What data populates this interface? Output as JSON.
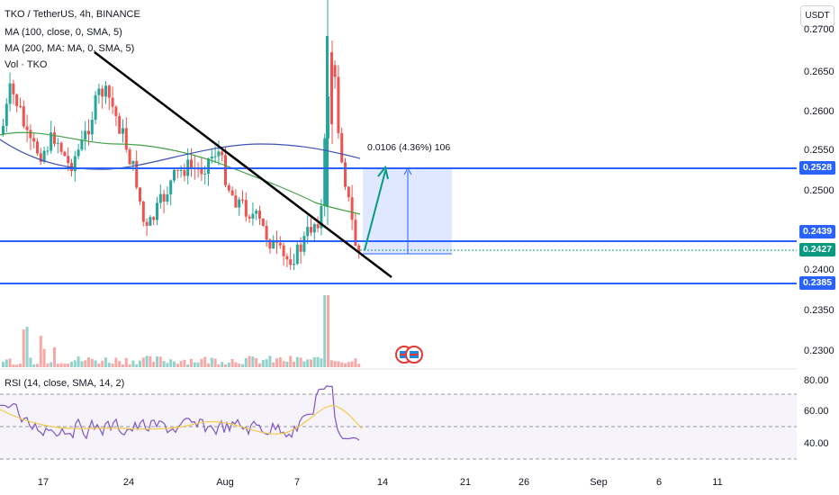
{
  "legend": {
    "symbol": "TKO / TetherUS, 4h, BINANCE",
    "ma100": "MA (100, close, 0, SMA, 5)",
    "ma200": "MA (200, MA: MA, 0, SMA, 5)",
    "vol": "Vol · TKO"
  },
  "currency_button": "USDT",
  "price_axis": {
    "ticks": [
      "0.2700",
      "0.2650",
      "0.2600",
      "0.2550",
      "0.2500",
      "0.2400",
      "0.2350",
      "0.2300"
    ]
  },
  "price_tags": {
    "upper_level": "0.2528",
    "mid_level": "0.2439",
    "last_price": "0.2427",
    "lower_level": "0.2385"
  },
  "measure_label": "0.0106 (4.36%) 106",
  "rsi": {
    "legend": "RSI (14, close, SMA, 14, 2)",
    "ticks": [
      "80.00",
      "60.00",
      "40.00"
    ]
  },
  "time_axis": {
    "ticks": [
      "17",
      "24",
      "Aug",
      "7",
      "14",
      "21",
      "26",
      "Sep",
      "6",
      "11"
    ]
  },
  "colors": {
    "up": "#26a69a",
    "down": "#ef5350",
    "level_line": "#2962ff",
    "ma100": "#43a047",
    "ma200": "#3f51b5",
    "rsi_line": "#7e57c2",
    "rsi_ma": "#f2c94c",
    "last_price": "#089981"
  }
}
